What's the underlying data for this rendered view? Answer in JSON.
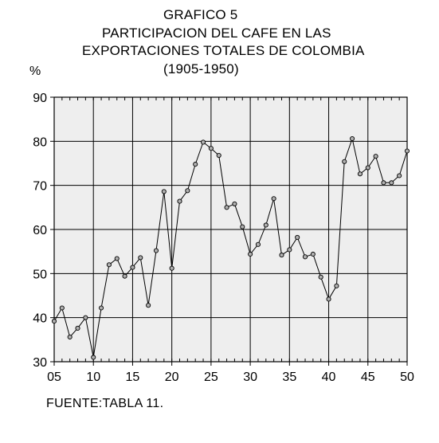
{
  "title": {
    "line1": "GRAFICO 5",
    "line2": "PARTICIPACION DEL CAFE EN LAS",
    "line3": "EXPORTACIONES TOTALES DE COLOMBIA",
    "line4": "(1905-1950)"
  },
  "source_note": "FUENTE:TABLA 11.",
  "chart_data": {
    "type": "line",
    "title": "GRAFICO 5 PARTICIPACION DEL CAFE EN LAS EXPORTACIONES TOTALES DE COLOMBIA (1905-1950)",
    "ylabel": "%",
    "xlabel": "",
    "xlim": [
      1905,
      1950
    ],
    "ylim": [
      30,
      90
    ],
    "x_ticks": [
      1905,
      1910,
      1915,
      1920,
      1925,
      1930,
      1935,
      1940,
      1945,
      1950
    ],
    "x_tick_labels": [
      "05",
      "10",
      "15",
      "20",
      "25",
      "30",
      "35",
      "40",
      "45",
      "50"
    ],
    "y_ticks": [
      30,
      40,
      50,
      60,
      70,
      80,
      90
    ],
    "y_tick_labels": [
      "30",
      "40",
      "50",
      "60",
      "70",
      "80",
      "90"
    ],
    "grid": true,
    "background": "#eeeeee",
    "series": [
      {
        "x": [
          1905,
          1906,
          1907,
          1908,
          1909,
          1910,
          1911,
          1912,
          1913,
          1914,
          1915,
          1916,
          1917,
          1918,
          1919,
          1920,
          1921,
          1922,
          1923,
          1924,
          1925,
          1926,
          1927,
          1928,
          1929,
          1930,
          1931,
          1932,
          1933,
          1934,
          1935,
          1936,
          1937,
          1938,
          1939,
          1940,
          1941,
          1942,
          1943,
          1944,
          1945,
          1946,
          1947,
          1948,
          1949,
          1950
        ],
        "values": [
          39.2,
          42.2,
          35.6,
          37.6,
          40.0,
          31.0,
          42.2,
          52.0,
          53.4,
          49.4,
          51.4,
          53.6,
          42.8,
          55.2,
          68.6,
          51.2,
          66.4,
          68.8,
          74.8,
          79.8,
          78.4,
          76.8,
          65.0,
          65.8,
          60.6,
          54.4,
          56.6,
          61.0,
          67.0,
          54.2,
          55.4,
          58.2,
          53.8,
          54.4,
          49.2,
          44.2,
          47.2,
          75.4,
          80.6,
          72.6,
          74.0,
          76.6,
          70.6,
          70.6,
          72.2,
          77.8
        ]
      }
    ]
  }
}
